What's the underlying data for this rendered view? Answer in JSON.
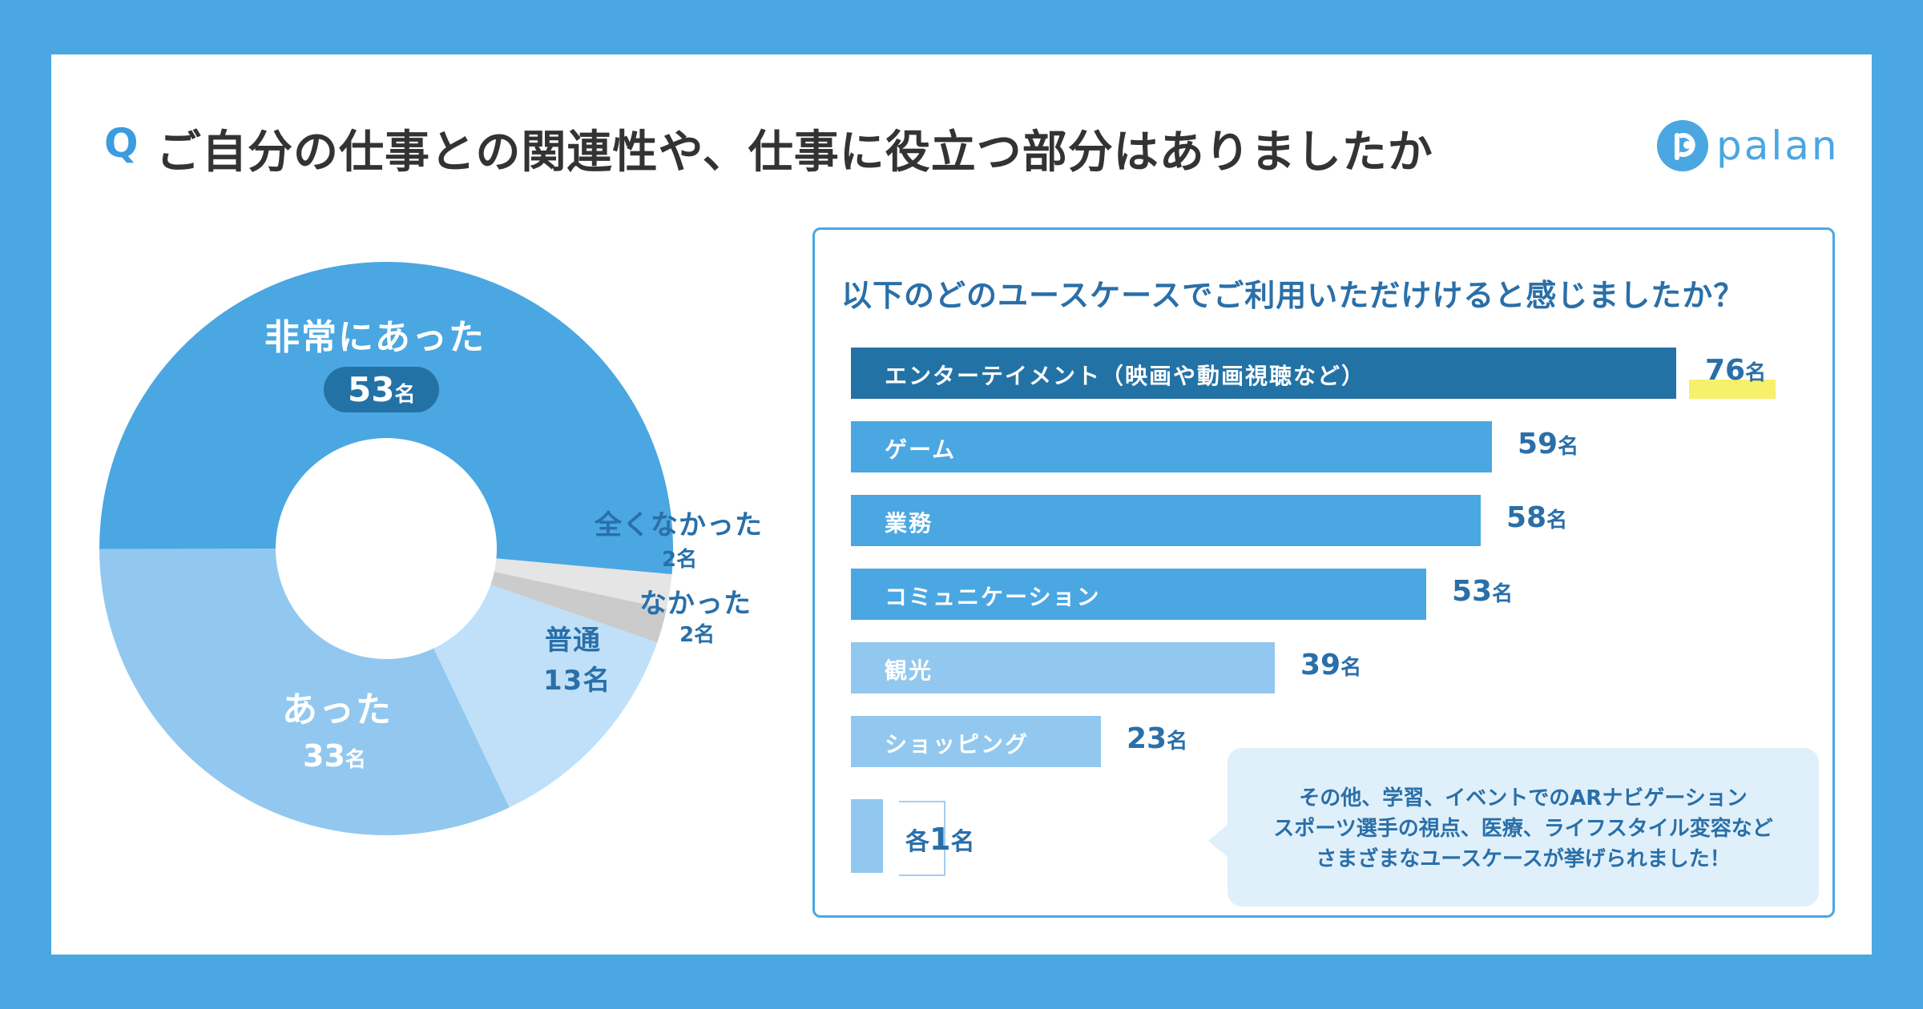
{
  "header": {
    "q_mark": "Q",
    "question": "ご自分の仕事との関連性や、仕事に役立つ部分はありましたか",
    "logo_text": "palan"
  },
  "colors": {
    "background": "#4aa7e2",
    "dark_blue": "#2372a6",
    "mid_blue": "#4aa7e2",
    "light_blue": "#92c8ef",
    "pale_blue": "#bfe0f8",
    "light_gray": "#e5e5e5",
    "gray": "#cbcbcb",
    "highlight": "#f7f06a"
  },
  "panel": {
    "title": "以下のどのユースケースでご利用いただけけると感じましたか？",
    "others_label": "各",
    "others_value": "1",
    "others_unit": "名",
    "note_lines": [
      "その他、学習、イベントでのARナビゲーション",
      "スポーツ選手の視点、医療、ライフスタイル変容など",
      "さまざまなユースケースが挙げられました！"
    ]
  },
  "chart_data": [
    {
      "type": "pie",
      "unit": "名",
      "slices": [
        {
          "label": "非常にあった",
          "value": 53,
          "color": "#4aa7e2"
        },
        {
          "label": "全くなかった",
          "value": 2,
          "color": "#e5e5e5"
        },
        {
          "label": "なかった",
          "value": 2,
          "color": "#cbcbcb"
        },
        {
          "label": "普通",
          "value": 13,
          "color": "#bfe0f8"
        },
        {
          "label": "あった",
          "value": 33,
          "color": "#92c8ef"
        }
      ]
    },
    {
      "type": "bar",
      "orientation": "horizontal",
      "unit": "名",
      "categories": [
        "エンターテイメント（映画や動画視聴など）",
        "ゲーム",
        "業務",
        "コミュニケーション",
        "観光",
        "ショッピング",
        ""
      ],
      "values": [
        76,
        59,
        58,
        53,
        39,
        23,
        1
      ],
      "colors": [
        "#2372a6",
        "#4aa7e2",
        "#4aa7e2",
        "#4aa7e2",
        "#92c8ef",
        "#92c8ef",
        "#92c8ef"
      ]
    }
  ]
}
